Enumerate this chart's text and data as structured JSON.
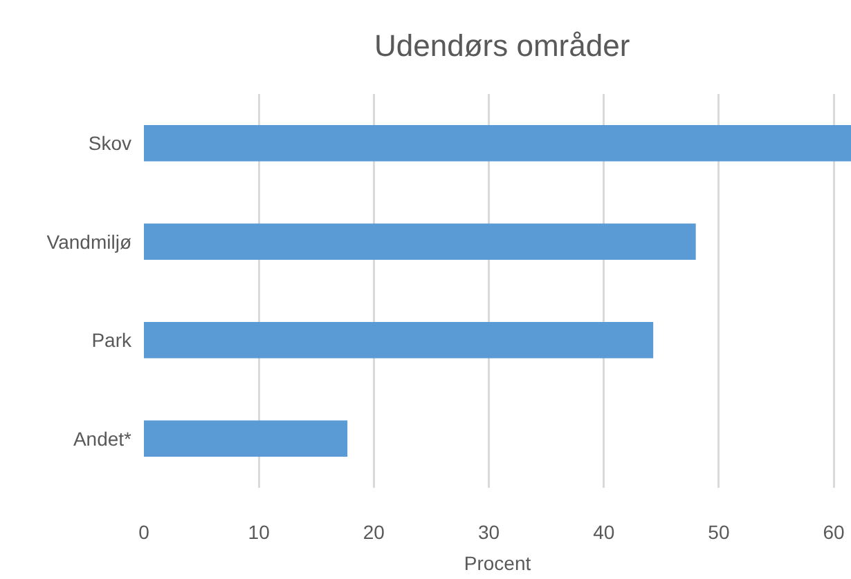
{
  "chart_data": {
    "type": "bar",
    "orientation": "horizontal",
    "title": "Udendørs områder",
    "xlabel": "Procent",
    "categories": [
      "Skov",
      "Vandmiljø",
      "Park",
      "Andet*"
    ],
    "values": [
      61.5,
      48.0,
      44.3,
      17.7
    ],
    "color": "#5b9bd5",
    "xlim": [
      0,
      61.5
    ],
    "xticks": [
      0,
      10,
      20,
      30,
      40,
      50,
      60
    ],
    "grid": "x",
    "legend": false
  }
}
